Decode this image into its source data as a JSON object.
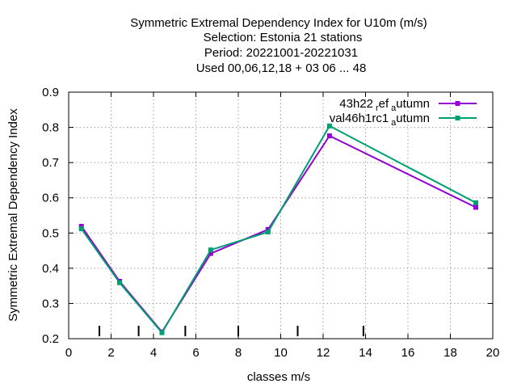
{
  "chart_data": {
    "type": "line",
    "title_lines": [
      "Symmetric Extremal Dependency Index  for U10m (m/s)",
      "Selection: Estonia     21 stations",
      "Period: 20221001-20221031",
      "Used  00,06,12,18  + 03 06 ... 48"
    ],
    "xlabel": "classes m/s",
    "ylabel": "Symmetric Extremal Dependency Index",
    "xlim": [
      0,
      20
    ],
    "ylim": [
      0.2,
      0.9
    ],
    "xticks": [
      "0",
      "2",
      "4",
      "6",
      "8",
      "10",
      "12",
      "14",
      "16",
      "18",
      "20"
    ],
    "yticks": [
      "0.2",
      "0.3",
      "0.4",
      "0.5",
      "0.6",
      "0.7",
      "0.8",
      "0.9"
    ],
    "grid": true,
    "legend_position": "top-right",
    "class_markers": [
      1.45,
      3.3,
      5.5,
      8.0,
      10.8,
      13.9
    ],
    "series": [
      {
        "name": "43h22",
        "name_sub1": "r",
        "name_mid": "ef",
        "name_sub2": "a",
        "name_end": "utumn",
        "color": "#9400d3",
        "x": [
          0.6,
          2.4,
          4.4,
          6.7,
          9.4,
          12.3,
          19.2
        ],
        "y": [
          0.519,
          0.363,
          0.219,
          0.442,
          0.51,
          0.776,
          0.573
        ]
      },
      {
        "name": "val46h1rc1",
        "name_sub1": "a",
        "name_end": "utumn",
        "color": "#009e73",
        "x": [
          0.6,
          2.4,
          4.4,
          6.7,
          9.4,
          12.3,
          19.2
        ],
        "y": [
          0.512,
          0.359,
          0.217,
          0.452,
          0.503,
          0.804,
          0.586
        ]
      }
    ]
  }
}
